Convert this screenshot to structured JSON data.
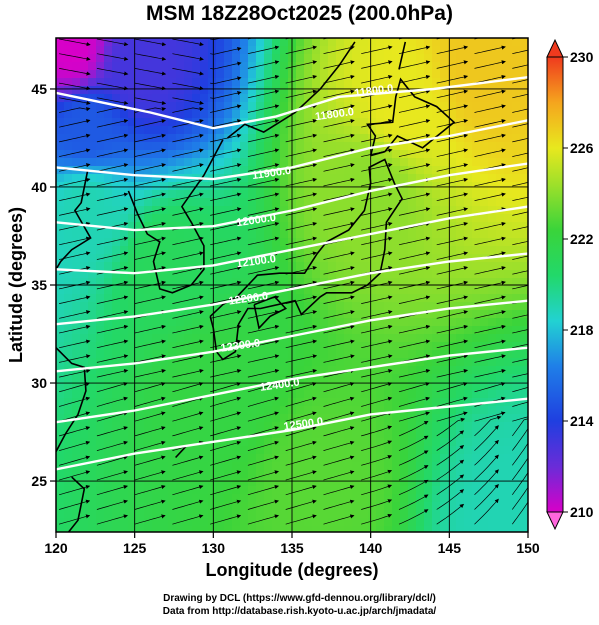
{
  "title": "MSM 18Z28Oct2025 (200.0hPa)",
  "x_axis": {
    "label": "Longitude (degrees)",
    "range": [
      120,
      150
    ],
    "ticks": [
      "120",
      "125",
      "130",
      "135",
      "140",
      "145",
      "150"
    ],
    "tick_values": [
      120,
      125,
      130,
      135,
      140,
      145,
      150
    ]
  },
  "y_axis": {
    "label": "Latitude  (degrees)",
    "range": [
      22.4,
      47.6
    ],
    "ticks": [
      "25",
      "30",
      "35",
      "40",
      "45"
    ],
    "tick_values": [
      25,
      30,
      35,
      40,
      45
    ]
  },
  "colorbar": {
    "range": [
      210,
      230
    ],
    "ticks": [
      "210",
      "214",
      "218",
      "222",
      "226",
      "230"
    ],
    "tick_values": [
      210,
      214,
      218,
      222,
      226,
      230
    ],
    "colors": [
      "#d800c8",
      "#6a2cd8",
      "#1f3fe0",
      "#1f7fe8",
      "#22d2d2",
      "#22d86a",
      "#3ad43a",
      "#9ee02a",
      "#e8e81e",
      "#f5a51e",
      "#ef3a1e"
    ]
  },
  "contour_labels": [
    "11800.0",
    "11800.0",
    "11900.0",
    "12000.0",
    "12100.0",
    "12200.0",
    "12300.0",
    "12400.0",
    "12500.0"
  ],
  "credits": {
    "line1": "Drawing by DCL (https://www.gfd-dennou.org/library/dcl/)",
    "line2": "Data from http://database.rish.kyoto-u.ac.jp/arch/jmadata/"
  },
  "chart_data": {
    "type": "heatmap",
    "title": "MSM 18Z28Oct2025 (200.0hPa)",
    "xlabel": "Longitude (degrees)",
    "ylabel": "Latitude  (degrees)",
    "xlim": [
      120,
      150
    ],
    "ylim": [
      22.4,
      47.6
    ],
    "color_range": [
      210,
      230
    ],
    "shaded_field_samples": [
      {
        "lon": 121,
        "lat": 47,
        "value": 210
      },
      {
        "lon": 125,
        "lat": 46,
        "value": 213
      },
      {
        "lon": 122,
        "lat": 43,
        "value": 215
      },
      {
        "lon": 122,
        "lat": 39,
        "value": 219
      },
      {
        "lon": 127,
        "lat": 36,
        "value": 221
      },
      {
        "lon": 130,
        "lat": 30,
        "value": 222
      },
      {
        "lon": 137,
        "lat": 25,
        "value": 223
      },
      {
        "lon": 140,
        "lat": 40,
        "value": 224
      },
      {
        "lon": 142,
        "lat": 44,
        "value": 226
      },
      {
        "lon": 147,
        "lat": 46,
        "value": 227
      },
      {
        "lon": 149,
        "lat": 23,
        "value": 219
      }
    ],
    "height_contours": {
      "levels": [
        11800,
        11900,
        12000,
        12100,
        12200,
        12300,
        12400,
        12500
      ],
      "lines": [
        {
          "level": 11800,
          "points": [
            [
              120,
              44.8
            ],
            [
              126,
              43.8
            ],
            [
              130,
              43.0
            ],
            [
              134,
              43.6
            ],
            [
              138,
              44.6
            ],
            [
              144,
              45.0
            ],
            [
              150,
              45.6
            ]
          ]
        },
        {
          "level": 11900,
          "points": [
            [
              120,
              41.0
            ],
            [
              125,
              40.6
            ],
            [
              130,
              40.4
            ],
            [
              135,
              41.0
            ],
            [
              140,
              42.0
            ],
            [
              145,
              42.6
            ],
            [
              150,
              43.4
            ]
          ]
        },
        {
          "level": 12000,
          "points": [
            [
              120,
              38.2
            ],
            [
              125,
              37.8
            ],
            [
              130,
              38.0
            ],
            [
              135,
              38.8
            ],
            [
              140,
              39.8
            ],
            [
              145,
              40.6
            ],
            [
              150,
              41.2
            ]
          ]
        },
        {
          "level": 12100,
          "points": [
            [
              120,
              35.8
            ],
            [
              125,
              35.6
            ],
            [
              130,
              36.0
            ],
            [
              135,
              36.8
            ],
            [
              140,
              37.6
            ],
            [
              145,
              38.4
            ],
            [
              150,
              39.0
            ]
          ]
        },
        {
          "level": 12200,
          "points": [
            [
              120,
              33.0
            ],
            [
              125,
              33.4
            ],
            [
              130,
              34.0
            ],
            [
              135,
              34.8
            ],
            [
              140,
              35.6
            ],
            [
              145,
              36.2
            ],
            [
              150,
              36.6
            ]
          ]
        },
        {
          "level": 12300,
          "points": [
            [
              120,
              30.6
            ],
            [
              125,
              31.0
            ],
            [
              130,
              31.6
            ],
            [
              135,
              32.4
            ],
            [
              140,
              33.2
            ],
            [
              145,
              33.8
            ],
            [
              150,
              34.2
            ]
          ]
        },
        {
          "level": 12400,
          "points": [
            [
              120,
              28.0
            ],
            [
              125,
              28.6
            ],
            [
              130,
              29.4
            ],
            [
              135,
              30.2
            ],
            [
              140,
              30.8
            ],
            [
              145,
              31.4
            ],
            [
              150,
              31.8
            ]
          ]
        },
        {
          "level": 12500,
          "points": [
            [
              120,
              25.6
            ],
            [
              125,
              26.4
            ],
            [
              130,
              27.0
            ],
            [
              135,
              27.6
            ],
            [
              140,
              28.4
            ],
            [
              145,
              28.8
            ],
            [
              150,
              29.2
            ]
          ]
        }
      ]
    },
    "wind": {
      "direction": "westerly to west-southwesterly",
      "note": "streamlines across domain"
    }
  }
}
